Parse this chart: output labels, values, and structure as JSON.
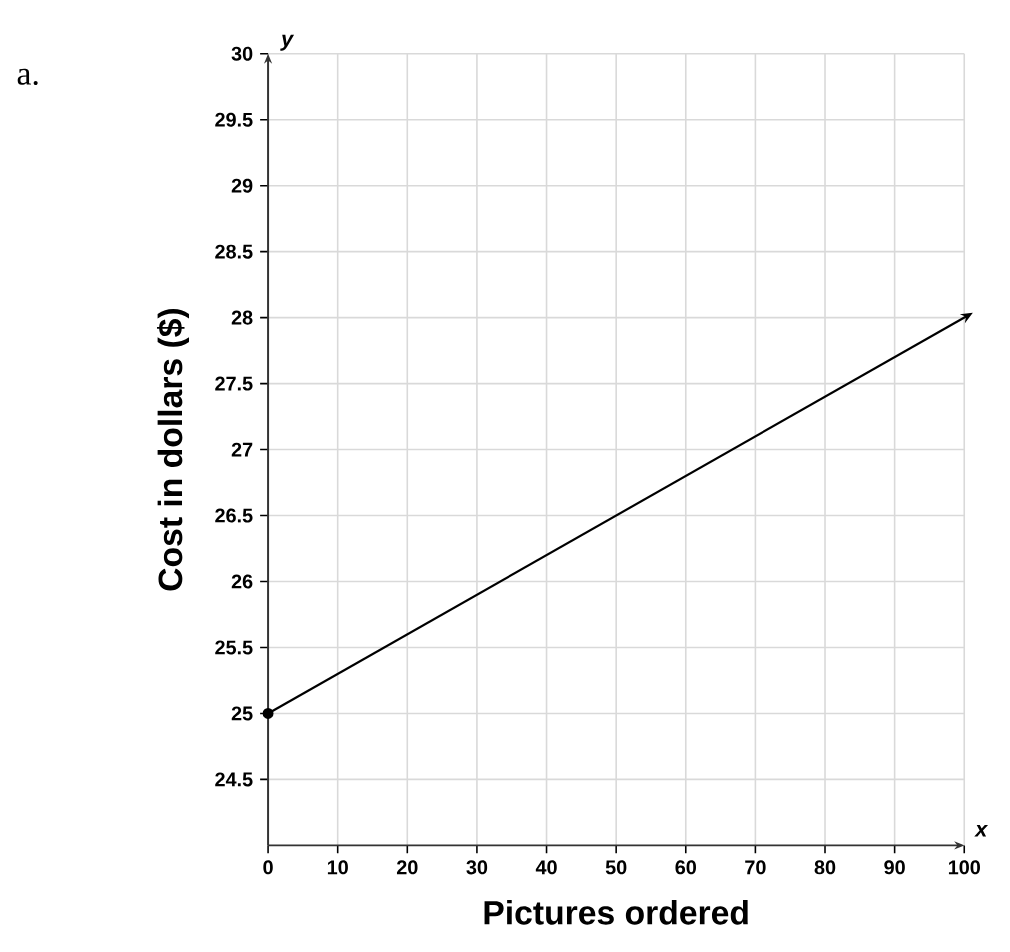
{
  "chart_data": {
    "type": "line",
    "xlabel": "Pictures ordered",
    "ylabel": "Cost in dollars ($)",
    "annotations": [
      "a.",
      "x",
      "y"
    ],
    "series": [
      {
        "x": [
          0,
          100
        ],
        "values": [
          25,
          28
        ],
        "color": "#000000",
        "marker": "circle"
      }
    ],
    "xlim": [
      0,
      100
    ],
    "xticks": [
      0,
      10,
      20,
      30,
      40,
      50,
      60,
      70,
      80,
      90,
      100
    ],
    "ylim": [
      24,
      30
    ],
    "yticks": [
      24.5,
      25,
      25.5,
      26,
      26.5,
      27,
      27.5,
      28,
      28.5,
      29,
      29.5,
      30
    ],
    "grid": true
  }
}
